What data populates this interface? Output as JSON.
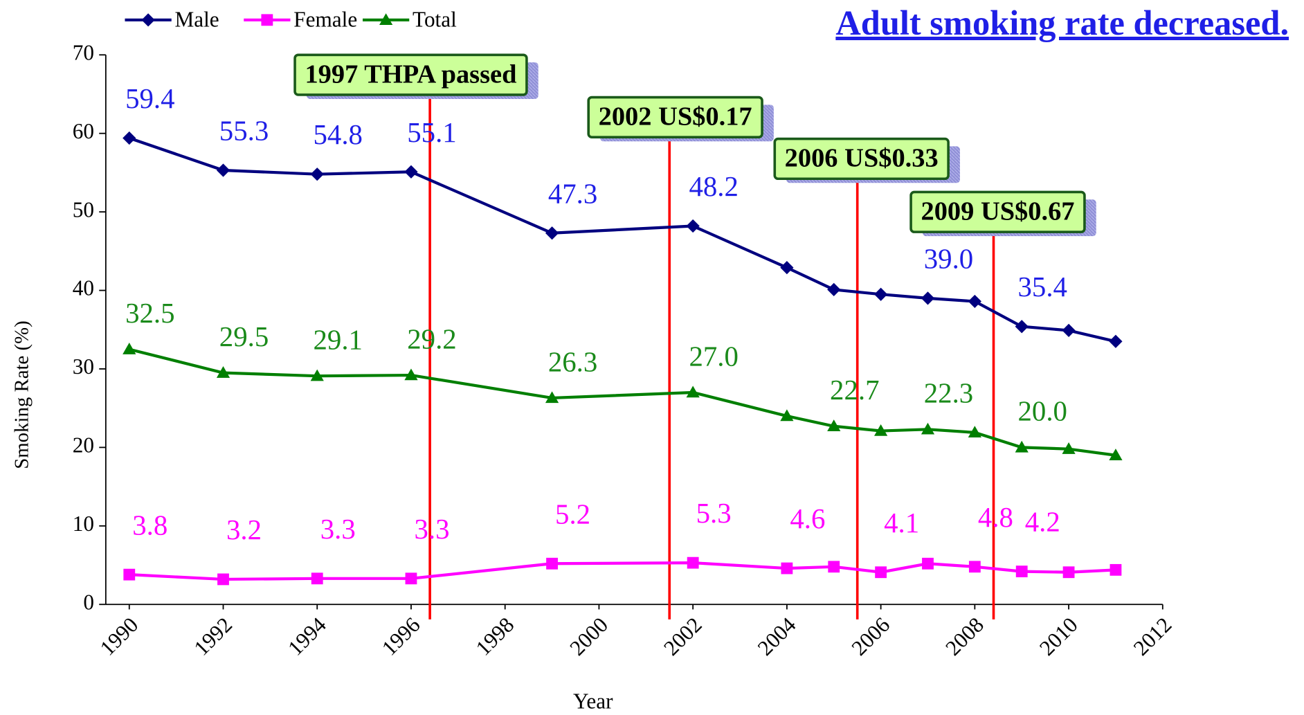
{
  "chart_data": {
    "type": "line",
    "title": "Adult smoking rate decreased.",
    "xlabel": "Year",
    "ylabel": "Smoking Rate (%)",
    "x": [
      1990,
      1992,
      1994,
      1996,
      1999,
      2002,
      2004,
      2005,
      2006,
      2007,
      2008,
      2009,
      2010,
      2011
    ],
    "series": [
      {
        "name": "Male",
        "color": "#00007f",
        "label_color": "#1f1fe6",
        "marker": "diamond",
        "values": [
          59.4,
          55.3,
          54.8,
          55.1,
          47.3,
          48.2,
          42.9,
          40.1,
          39.5,
          39.0,
          38.6,
          35.4,
          34.9,
          33.5
        ],
        "value_labels": [
          "59.4",
          "55.3",
          "54.8",
          "55.1",
          "47.3",
          "48.2",
          null,
          null,
          null,
          "39.0",
          null,
          "35.4",
          null,
          null
        ]
      },
      {
        "name": "Female",
        "color": "#ff00ff",
        "label_color": "#ff00ff",
        "marker": "square",
        "values": [
          3.8,
          3.2,
          3.3,
          3.3,
          5.2,
          5.3,
          4.6,
          4.8,
          4.1,
          5.2,
          4.8,
          4.2,
          4.1,
          4.4
        ],
        "value_labels": [
          "3.8",
          "3.2",
          "3.3",
          "3.3",
          "5.2",
          "5.3",
          "4.6",
          null,
          "4.1",
          null,
          "4.8",
          "4.2",
          null,
          null
        ]
      },
      {
        "name": "Total",
        "color": "#007f00",
        "label_color": "#1a8a1a",
        "marker": "triangle",
        "values": [
          32.5,
          29.5,
          29.1,
          29.2,
          26.3,
          27.0,
          24.0,
          22.7,
          22.1,
          22.3,
          21.9,
          20.0,
          19.8,
          19.0
        ],
        "value_labels": [
          "32.5",
          "29.5",
          "29.1",
          "29.2",
          "26.3",
          "27.0",
          null,
          "22.7",
          null,
          "22.3",
          null,
          "20.0",
          null,
          null
        ]
      }
    ],
    "xlim": [
      1989.5,
      2012
    ],
    "xticks": [
      1990,
      1992,
      1994,
      1996,
      1998,
      2000,
      2002,
      2004,
      2006,
      2008,
      2010,
      2012
    ],
    "ylim": [
      0,
      70
    ],
    "yticks": [
      0,
      10,
      20,
      30,
      40,
      50,
      60,
      70
    ],
    "grid": false,
    "legend": "top-left",
    "annotations": [
      {
        "text": "1997 THPA passed",
        "x": 1996.4
      },
      {
        "text": "2002 US$0.17",
        "x": 2001.5
      },
      {
        "text": "2006 US$0.33",
        "x": 2005.5
      },
      {
        "text": "2009 US$0.67",
        "x": 2008.4
      }
    ],
    "annotation_color": "#ff0000"
  }
}
